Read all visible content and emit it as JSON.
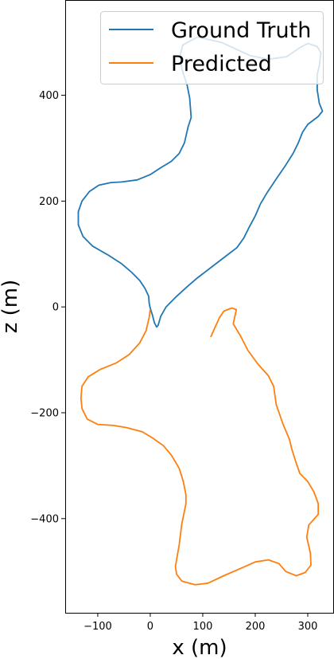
{
  "chart_data": {
    "type": "line",
    "title": "",
    "xlabel": "x (m)",
    "ylabel": "z (m)",
    "xlim": [
      -162,
      350
    ],
    "ylim": [
      -578,
      580
    ],
    "xticks": [
      -100,
      0,
      100,
      200,
      300
    ],
    "yticks": [
      -400,
      -200,
      0,
      200,
      400
    ],
    "xtick_labels": [
      "−100",
      "0",
      "100",
      "200",
      "300"
    ],
    "ytick_labels": [
      "−400",
      "−200",
      "0",
      "200",
      "400"
    ],
    "grid": false,
    "legend_position": "upper right",
    "colors": {
      "Ground Truth": "#1f77b4",
      "Predicted": "#ff7f0e"
    },
    "series": [
      {
        "name": "Ground Truth",
        "points": [
          [
            -2,
            7
          ],
          [
            -3,
            20
          ],
          [
            -10,
            35
          ],
          [
            -20,
            50
          ],
          [
            -35,
            65
          ],
          [
            -55,
            82
          ],
          [
            -80,
            98
          ],
          [
            -110,
            115
          ],
          [
            -128,
            133
          ],
          [
            -137,
            155
          ],
          [
            -137,
            180
          ],
          [
            -130,
            200
          ],
          [
            -116,
            218
          ],
          [
            -98,
            230
          ],
          [
            -75,
            235
          ],
          [
            -55,
            236
          ],
          [
            -25,
            240
          ],
          [
            0,
            250
          ],
          [
            20,
            263
          ],
          [
            40,
            275
          ],
          [
            55,
            290
          ],
          [
            65,
            310
          ],
          [
            72,
            340
          ],
          [
            78,
            358
          ],
          [
            75,
            395
          ],
          [
            70,
            420
          ],
          [
            60,
            450
          ],
          [
            57,
            475
          ],
          [
            62,
            495
          ],
          [
            90,
            510
          ],
          [
            135,
            500
          ],
          [
            190,
            475
          ],
          [
            225,
            468
          ],
          [
            260,
            473
          ],
          [
            285,
            490
          ],
          [
            300,
            498
          ],
          [
            318,
            492
          ],
          [
            325,
            480
          ],
          [
            322,
            455
          ],
          [
            318,
            440
          ],
          [
            318,
            410
          ],
          [
            322,
            385
          ],
          [
            328,
            370
          ],
          [
            320,
            360
          ],
          [
            300,
            345
          ],
          [
            290,
            330
          ],
          [
            282,
            310
          ],
          [
            272,
            290
          ],
          [
            258,
            268
          ],
          [
            240,
            242
          ],
          [
            222,
            215
          ],
          [
            210,
            195
          ],
          [
            200,
            172
          ],
          [
            188,
            150
          ],
          [
            178,
            130
          ],
          [
            165,
            112
          ],
          [
            140,
            93
          ],
          [
            115,
            74
          ],
          [
            90,
            55
          ],
          [
            70,
            38
          ],
          [
            50,
            20
          ],
          [
            30,
            0
          ],
          [
            20,
            -18
          ],
          [
            15,
            -35
          ],
          [
            12,
            -38
          ],
          [
            8,
            -30
          ],
          [
            4,
            -15
          ],
          [
            0,
            -2
          ],
          [
            -2,
            7
          ]
        ]
      },
      {
        "name": "Predicted",
        "points": [
          [
            0,
            -5
          ],
          [
            -2,
            -20
          ],
          [
            -8,
            -45
          ],
          [
            -20,
            -68
          ],
          [
            -40,
            -90
          ],
          [
            -65,
            -106
          ],
          [
            -95,
            -118
          ],
          [
            -118,
            -132
          ],
          [
            -130,
            -150
          ],
          [
            -132,
            -172
          ],
          [
            -130,
            -192
          ],
          [
            -120,
            -212
          ],
          [
            -100,
            -222
          ],
          [
            -70,
            -224
          ],
          [
            -45,
            -228
          ],
          [
            -15,
            -236
          ],
          [
            5,
            -248
          ],
          [
            25,
            -262
          ],
          [
            40,
            -280
          ],
          [
            55,
            -305
          ],
          [
            63,
            -330
          ],
          [
            68,
            -355
          ],
          [
            68,
            -372
          ],
          [
            60,
            -410
          ],
          [
            55,
            -450
          ],
          [
            48,
            -490
          ],
          [
            50,
            -505
          ],
          [
            60,
            -518
          ],
          [
            85,
            -525
          ],
          [
            110,
            -522
          ],
          [
            140,
            -508
          ],
          [
            170,
            -495
          ],
          [
            200,
            -482
          ],
          [
            225,
            -478
          ],
          [
            245,
            -485
          ],
          [
            258,
            -500
          ],
          [
            278,
            -508
          ],
          [
            295,
            -502
          ],
          [
            306,
            -488
          ],
          [
            305,
            -465
          ],
          [
            298,
            -435
          ],
          [
            302,
            -412
          ],
          [
            320,
            -392
          ],
          [
            320,
            -372
          ],
          [
            312,
            -350
          ],
          [
            300,
            -330
          ],
          [
            285,
            -315
          ],
          [
            278,
            -295
          ],
          [
            270,
            -270
          ],
          [
            265,
            -250
          ],
          [
            253,
            -222
          ],
          [
            240,
            -185
          ],
          [
            235,
            -150
          ],
          [
            225,
            -130
          ],
          [
            205,
            -108
          ],
          [
            186,
            -82
          ],
          [
            172,
            -55
          ],
          [
            158,
            -32
          ],
          [
            164,
            -5
          ],
          [
            155,
            -2
          ],
          [
            140,
            -8
          ],
          [
            132,
            -20
          ],
          [
            125,
            -35
          ],
          [
            115,
            -57
          ]
        ]
      }
    ]
  }
}
